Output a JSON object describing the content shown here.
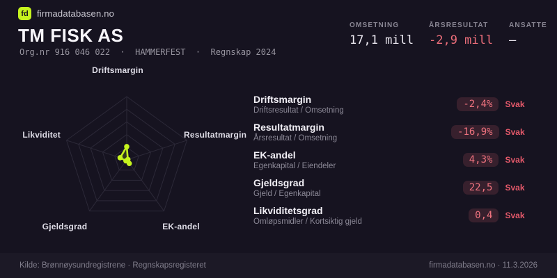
{
  "brand": {
    "logo_text": "fd",
    "site_name": "firmadatabasen.no",
    "accent_color": "#c6f41e"
  },
  "header": {
    "company_name": "TM FISK AS",
    "subtitle": "Org.nr 916 046 022  ·  HAMMERFEST  ·  Regnskap 2024"
  },
  "key_figures": [
    {
      "label": "OMSETNING",
      "value": "17,1 mill",
      "color": "#edeaf2"
    },
    {
      "label": "ÅRSRESULTAT",
      "value": "-2,9 mill",
      "color": "#ee6f7b"
    },
    {
      "label": "ANSATTE",
      "value": "–",
      "color": "#edeaf2"
    }
  ],
  "chart_data": {
    "type": "radar",
    "axes": [
      "Driftsmargin",
      "Resultatmargin",
      "EK-andel",
      "Gjeldsgrad",
      "Likviditet"
    ],
    "values_normalized": [
      0.21,
      0.02,
      0.07,
      0.02,
      0.11
    ],
    "rings": 5,
    "grid_color": "#2c2938",
    "series_color": "#c6f41e",
    "legend": "none"
  },
  "metrics": [
    {
      "title": "Driftsmargin",
      "formula": "Driftsresultat / Omsetning",
      "value": "-2,4%",
      "rating": "Svak"
    },
    {
      "title": "Resultatmargin",
      "formula": "Årsresultat / Omsetning",
      "value": "-16,9%",
      "rating": "Svak"
    },
    {
      "title": "EK-andel",
      "formula": "Egenkapital / Eiendeler",
      "value": "4,3%",
      "rating": "Svak"
    },
    {
      "title": "Gjeldsgrad",
      "formula": "Gjeld / Egenkapital",
      "value": "22,5",
      "rating": "Svak"
    },
    {
      "title": "Likviditetsgrad",
      "formula": "Omløpsmidler / Kortsiktig gjeld",
      "value": "0,4",
      "rating": "Svak"
    }
  ],
  "status_colors": {
    "pill_bg": "#37202d",
    "pill_text": "#f0737f",
    "rating_text": "#e4596a"
  },
  "footer": {
    "left": "Kilde: Brønnøysundregistrene · Regnskapsregisteret",
    "right": "firmadatabasen.no · 11.3.2026"
  }
}
